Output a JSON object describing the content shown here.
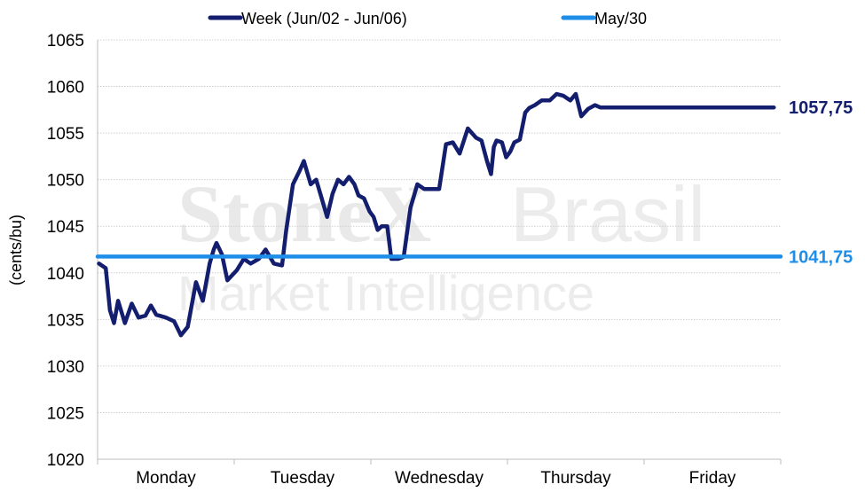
{
  "chart_data": {
    "type": "line",
    "ylabel": "(cents/bu)",
    "ylim": [
      1020,
      1065
    ],
    "yticks": [
      1020,
      1025,
      1030,
      1035,
      1040,
      1045,
      1050,
      1055,
      1060,
      1065
    ],
    "xlim": [
      0,
      5
    ],
    "categories": [
      "Monday",
      "Tuesday",
      "Wednesday",
      "Thursday",
      "Friday"
    ],
    "grid": true,
    "legend_position": "top",
    "series": [
      {
        "name": "Week (Jun/02 - Jun/06)",
        "color": "#141e6e",
        "end_label": "1057,75",
        "x": [
          0.01,
          0.06,
          0.09,
          0.12,
          0.15,
          0.2,
          0.25,
          0.3,
          0.35,
          0.39,
          0.43,
          0.5,
          0.56,
          0.61,
          0.66,
          0.72,
          0.77,
          0.82,
          0.85,
          0.87,
          0.91,
          0.95,
          1.02,
          1.07,
          1.12,
          1.18,
          1.23,
          1.29,
          1.35,
          1.38,
          1.43,
          1.48,
          1.51,
          1.56,
          1.6,
          1.64,
          1.68,
          1.72,
          1.76,
          1.8,
          1.84,
          1.88,
          1.91,
          1.95,
          1.99,
          2.02,
          2.05,
          2.08,
          2.12,
          2.15,
          2.2,
          2.24,
          2.29,
          2.34,
          2.39,
          2.44,
          2.5,
          2.55,
          2.6,
          2.65,
          2.71,
          2.77,
          2.81,
          2.85,
          2.88,
          2.9,
          2.92,
          2.96,
          2.99,
          3.02,
          3.05,
          3.09,
          3.13,
          3.16,
          3.2,
          3.25,
          3.31,
          3.36,
          3.41,
          3.46,
          3.5,
          3.54,
          3.59,
          3.64,
          3.68,
          3.72,
          3.76,
          3.81,
          3.86,
          3.91,
          3.96,
          4.0,
          4.05,
          4.1,
          4.15,
          4.21,
          4.27,
          4.33,
          4.39,
          4.45,
          4.5,
          4.54,
          4.59,
          4.63,
          4.66,
          4.69,
          4.73,
          4.77,
          4.8,
          4.82,
          4.85,
          4.9,
          4.95
        ],
        "y": [
          1041.0,
          1040.5,
          1036.0,
          1034.6,
          1037.0,
          1034.6,
          1036.7,
          1035.2,
          1035.4,
          1036.5,
          1035.5,
          1035.2,
          1034.8,
          1033.3,
          1034.2,
          1039.0,
          1037.0,
          1041.0,
          1042.5,
          1043.2,
          1042.0,
          1039.2,
          1040.3,
          1041.5,
          1041.0,
          1041.5,
          1042.5,
          1041.0,
          1040.8,
          1044.5,
          1049.5,
          1051.0,
          1052.0,
          1049.5,
          1050.0,
          1048.0,
          1046.0,
          1048.5,
          1050.0,
          1049.5,
          1050.3,
          1049.5,
          1048.3,
          1048.0,
          1046.6,
          1046.0,
          1044.6,
          1045.0,
          1045.0,
          1041.5,
          1041.5,
          1041.7,
          1047.0,
          1049.5,
          1049.0,
          1049.0,
          1049.0,
          1053.8,
          1054.0,
          1052.8,
          1055.5,
          1054.5,
          1054.2,
          1052.0,
          1050.6,
          1053.5,
          1054.2,
          1054.0,
          1052.4,
          1053.0,
          1054.0,
          1054.3,
          1057.2,
          1057.7,
          1058.0,
          1058.5,
          1058.5,
          1059.2,
          1059.0,
          1058.5,
          1059.2,
          1056.8,
          1057.6,
          1058.0,
          1057.75,
          1057.75,
          1057.75,
          1057.75,
          1057.75,
          1057.75,
          1057.75,
          1057.75,
          1057.75,
          1057.75,
          1057.75,
          1057.75,
          1057.75,
          1057.75,
          1057.75,
          1057.75,
          1057.75,
          1057.75,
          1057.75,
          1057.75,
          1057.75,
          1057.75,
          1057.75,
          1057.75,
          1057.75,
          1057.75,
          1057.75,
          1057.75,
          1057.75
        ]
      },
      {
        "name": "May/30",
        "color": "#1e8ee8",
        "end_label": "1041,75",
        "x": [
          0,
          5
        ],
        "y": [
          1041.75,
          1041.75
        ]
      }
    ]
  },
  "watermark": {
    "line1": "StoneX",
    "line1b": "Brasil",
    "line2": "Market Intelligence"
  }
}
